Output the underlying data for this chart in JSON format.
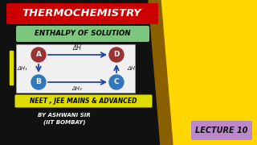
{
  "bg_color": "#111111",
  "title_text": "THERMOCHEMISTRY",
  "title_bg": "#cc0000",
  "title_color": "#ffffff",
  "subtitle_text": "ENTHALPY OF SOLUTION",
  "subtitle_bg": "#7dc67d",
  "subtitle_color": "#000000",
  "node_red_color": "#993333",
  "node_blue_color": "#3377bb",
  "arrow_color": "#2244aa",
  "bottom_bar_bg": "#dddd00",
  "bottom_text1": "NEET , JEE MAINS & ADVANCED",
  "bottom_text1_color": "#000000",
  "bottom_text2": "BY ASHWANI SIR",
  "bottom_text3": "(IIT BOMBAY)",
  "bottom_text23_color": "#ffffff",
  "lecture_text": "LECTURE 10",
  "lecture_bg": "#bb88cc",
  "lecture_text_color": "#111111",
  "dH_label": "ΔH",
  "dH1_label": "ΔH₁",
  "dH2_label": "ΔH₂",
  "dH3_label": "ΔH₃",
  "yellow_color": "#FFD700",
  "brown_color": "#8B6000",
  "diag_bg": "#f0f0f0",
  "white_bar_color": "#dddd00"
}
